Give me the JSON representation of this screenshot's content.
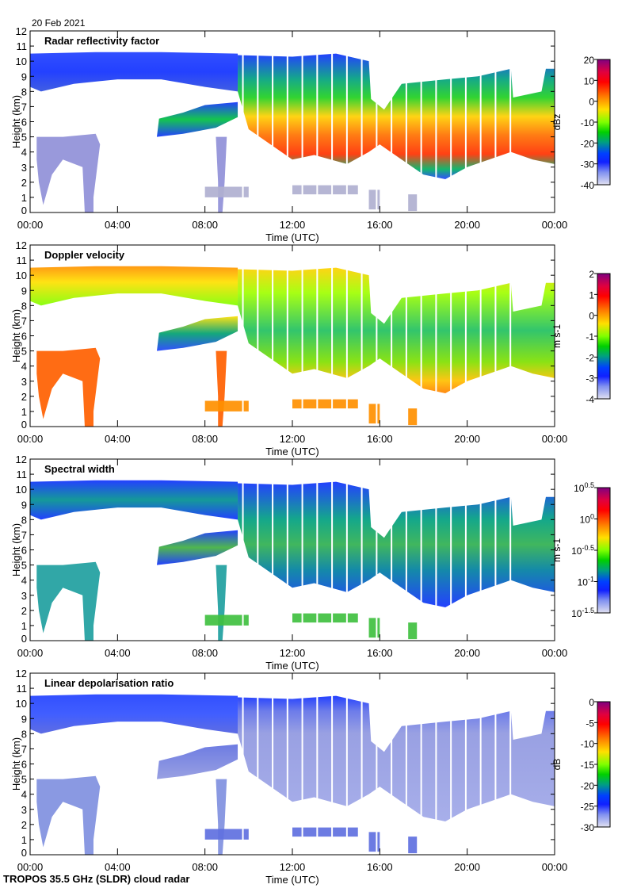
{
  "date": "20 Feb 2021",
  "footer": "TROPOS 35.5 GHz (SLDR) cloud radar",
  "chart_data": {
    "type": "heatmap",
    "xlabel": "Time (UTC)",
    "ylabel": "Height (km)",
    "xlim": [
      0,
      24
    ],
    "ylim": [
      0,
      12
    ],
    "xticks": [
      "00:00",
      "04:00",
      "08:00",
      "12:00",
      "16:00",
      "20:00",
      "00:00"
    ],
    "yticks": [
      "0",
      "1",
      "2",
      "3",
      "4",
      "5",
      "6",
      "7",
      "8",
      "9",
      "10",
      "11",
      "12"
    ],
    "panels": [
      {
        "title": "Radar reflectivity factor",
        "unit": "dBz",
        "clim": [
          -40,
          20
        ],
        "cticks": [
          "20",
          "10",
          "0",
          "-10",
          "-20",
          "-30",
          "-40"
        ]
      },
      {
        "title": "Doppler velocity",
        "unit": "m s-1",
        "clim": [
          -4,
          2
        ],
        "cticks": [
          "2",
          "1",
          "0",
          "-1",
          "-2",
          "-3",
          "-4"
        ]
      },
      {
        "title": "Spectral width",
        "unit": "m s-1",
        "clim": [
          -1.5,
          0.5
        ],
        "cticks": [
          "10^0.5",
          "10^0",
          "10^-0.5",
          "10^-1",
          "10^-1.5"
        ]
      },
      {
        "title": "Linear depolarisation ratio",
        "unit": "dB",
        "clim": [
          -30,
          0
        ],
        "cticks": [
          "0",
          "-5",
          "-10",
          "-15",
          "-20",
          "-25",
          "-30"
        ]
      }
    ],
    "echo_layers": [
      {
        "name": "cirrus",
        "points": [
          [
            0,
            8.3
          ],
          [
            0,
            10.5
          ],
          [
            3,
            10.6
          ],
          [
            6,
            10.6
          ],
          [
            9.5,
            10.5
          ],
          [
            9.5,
            8
          ],
          [
            8,
            8.3
          ],
          [
            6,
            8.8
          ],
          [
            4,
            8.8
          ],
          [
            2,
            8.5
          ],
          [
            0.5,
            8
          ]
        ]
      },
      {
        "name": "main-cloud",
        "points": [
          [
            9.5,
            10.4
          ],
          [
            12,
            10.3
          ],
          [
            14,
            10.5
          ],
          [
            15.5,
            10
          ],
          [
            15.6,
            7.5
          ],
          [
            16.2,
            6.8
          ],
          [
            17,
            8.5
          ],
          [
            19,
            8.8
          ],
          [
            20.5,
            9
          ],
          [
            22,
            9.5
          ],
          [
            22.1,
            7.6
          ],
          [
            23.4,
            8
          ],
          [
            23.6,
            9.5
          ],
          [
            24,
            9.5
          ],
          [
            24,
            3.2
          ],
          [
            23,
            3.5
          ],
          [
            22,
            4
          ],
          [
            21,
            3.5
          ],
          [
            20,
            3
          ],
          [
            19,
            2.2
          ],
          [
            18,
            2.5
          ],
          [
            17,
            3.5
          ],
          [
            16,
            4.5
          ],
          [
            15.5,
            4
          ],
          [
            14.5,
            3.2
          ],
          [
            13,
            3.8
          ],
          [
            12,
            3.5
          ],
          [
            11,
            4.5
          ],
          [
            10,
            5.5
          ],
          [
            9.5,
            8
          ]
        ]
      },
      {
        "name": "mid-layer",
        "points": [
          [
            5.8,
            5
          ],
          [
            5.9,
            6.2
          ],
          [
            7,
            6.6
          ],
          [
            8,
            7.1
          ],
          [
            9.5,
            7.3
          ],
          [
            9.5,
            6.3
          ],
          [
            8.5,
            5.6
          ],
          [
            7,
            5.2
          ]
        ]
      },
      {
        "name": "low-cloud",
        "points": [
          [
            0.3,
            5
          ],
          [
            1.5,
            5
          ],
          [
            3,
            5.2
          ],
          [
            3.2,
            4.5
          ],
          [
            2.9,
            1
          ],
          [
            2.9,
            0
          ],
          [
            2.5,
            0
          ],
          [
            2.4,
            3
          ],
          [
            1.5,
            3.5
          ],
          [
            1,
            2.5
          ],
          [
            0.6,
            0.5
          ],
          [
            0.4,
            2
          ],
          [
            0.3,
            3.5
          ]
        ]
      },
      {
        "name": "precip-column",
        "points": [
          [
            8.5,
            5
          ],
          [
            9,
            5
          ],
          [
            8.9,
            2
          ],
          [
            8.8,
            0
          ],
          [
            8.6,
            0
          ],
          [
            8.6,
            2
          ]
        ]
      },
      {
        "name": "low-drizzle-1",
        "points": [
          [
            8,
            1
          ],
          [
            8,
            1.7
          ],
          [
            10,
            1.7
          ],
          [
            10,
            1
          ]
        ]
      },
      {
        "name": "low-drizzle-2",
        "points": [
          [
            12,
            1.2
          ],
          [
            12,
            1.8
          ],
          [
            15,
            1.8
          ],
          [
            15,
            1.2
          ]
        ]
      },
      {
        "name": "low-drizzle-3",
        "points": [
          [
            15.5,
            0.2
          ],
          [
            15.5,
            1.5
          ],
          [
            16,
            1.5
          ],
          [
            16,
            0.2
          ]
        ]
      },
      {
        "name": "low-drizzle-4",
        "points": [
          [
            17.3,
            0.1
          ],
          [
            17.3,
            1.2
          ],
          [
            17.7,
            1.2
          ],
          [
            17.7,
            0.1
          ]
        ]
      }
    ]
  }
}
